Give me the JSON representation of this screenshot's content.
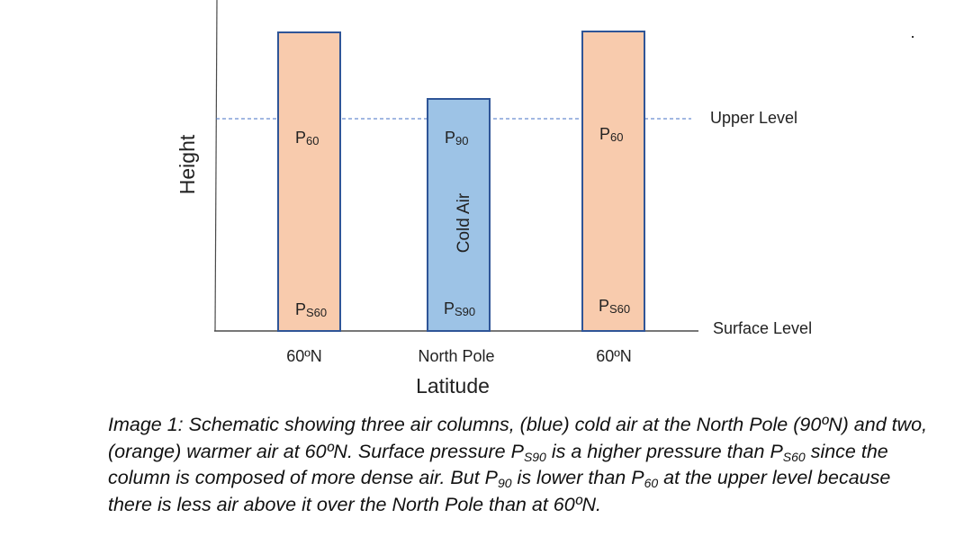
{
  "diagram": {
    "y_axis_label": "Height",
    "x_axis_title": "Latitude",
    "upper_level_label": "Upper Level",
    "surface_level_label": "Surface Level",
    "colors": {
      "warm_fill": "#F8CBAD",
      "cold_fill": "#9DC3E6",
      "column_stroke": "#2F5597",
      "dashed_line": "#4472C4",
      "axis": "#4a4a4a"
    },
    "columns": [
      {
        "name": "warm-column-left",
        "upper_label": "P",
        "upper_sub": "60",
        "surface_label": "P",
        "surface_sub": "S60",
        "x_label": "60ºN",
        "fill": "warm"
      },
      {
        "name": "cold-column-pole",
        "upper_label": "P",
        "upper_sub": "90",
        "surface_label": "P",
        "surface_sub": "S90",
        "x_label": "North Pole",
        "fill": "cold",
        "inner_label": "Cold Air"
      },
      {
        "name": "warm-column-right",
        "upper_label": "P",
        "upper_sub": "60",
        "surface_label": "P",
        "surface_sub": "S60",
        "x_label": "60ºN",
        "fill": "warm"
      }
    ]
  },
  "caption": {
    "s1": "Image 1: Schematic showing three air columns, (blue) cold air at the North Pole (90ºN) and two, (orange) warmer air at 60ºN. Surface pressure P",
    "s1_sub": "S90",
    "s2": " is a higher pressure than P",
    "s2_sub": "S60",
    "s3": " since the column is composed of more dense air. But P",
    "s3_sub": "90",
    "s4": " is lower than P",
    "s4_sub": "60",
    "s5": " at the upper level because there is less air above it over the North Pole than at 60ºN."
  }
}
